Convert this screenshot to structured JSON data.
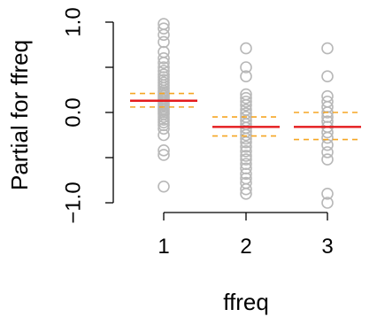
{
  "chart_data": {
    "type": "scatter",
    "title": "",
    "xlabel": "ffreq",
    "ylabel": "Partial for ffreq",
    "categories": [
      "1",
      "2",
      "3"
    ],
    "yticks": [
      -1.0,
      0.0,
      1.0
    ],
    "ytick_labels": [
      "−1.0",
      "0.0",
      "1.0"
    ],
    "ylim": [
      -1.05,
      1.02
    ],
    "colors": {
      "points": "#b8b8b8",
      "fit": "#e41a1c",
      "ci": "#f5a623"
    },
    "groups": [
      {
        "category": "1",
        "fit": 0.13,
        "ci_low": 0.06,
        "ci_high": 0.21,
        "points": [
          0.98,
          0.93,
          0.86,
          0.78,
          0.67,
          0.6,
          0.55,
          0.5,
          0.46,
          0.42,
          0.39,
          0.36,
          0.33,
          0.3,
          0.27,
          0.24,
          0.22,
          0.2,
          0.18,
          0.16,
          0.14,
          0.12,
          0.1,
          0.08,
          0.06,
          0.04,
          0.02,
          0.0,
          -0.02,
          -0.05,
          -0.08,
          -0.11,
          -0.14,
          -0.18,
          -0.25,
          -0.42,
          -0.47,
          -0.82
        ]
      },
      {
        "category": "2",
        "fit": -0.16,
        "ci_low": -0.26,
        "ci_high": -0.05,
        "points": [
          0.71,
          0.5,
          0.4,
          0.2,
          0.16,
          0.12,
          0.08,
          0.03,
          -0.01,
          -0.05,
          -0.09,
          -0.13,
          -0.17,
          -0.21,
          -0.25,
          -0.29,
          -0.33,
          -0.38,
          -0.43,
          -0.48,
          -0.52,
          -0.57,
          -0.62,
          -0.68,
          -0.73,
          -0.78,
          -0.85,
          -0.9
        ]
      },
      {
        "category": "3",
        "fit": -0.16,
        "ci_low": -0.3,
        "ci_high": -0.0,
        "points": [
          0.71,
          0.4,
          0.18,
          0.12,
          0.06,
          0.0,
          -0.05,
          -0.1,
          -0.16,
          -0.22,
          -0.28,
          -0.36,
          -0.44,
          -0.52,
          -0.9,
          -1.0
        ]
      }
    ]
  }
}
